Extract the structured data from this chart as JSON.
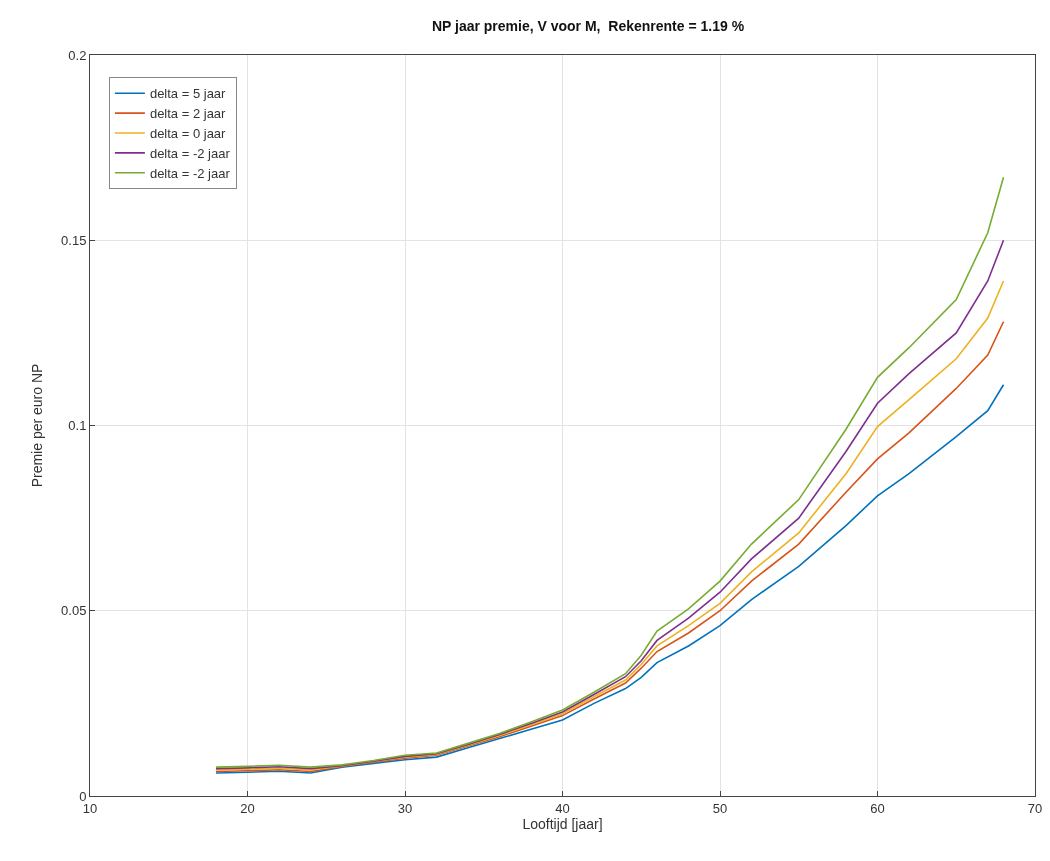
{
  "chart_data": {
    "type": "line",
    "title": "NP jaar premie, V voor M,  Rekenrente = 1.19 %",
    "xlabel": "Looftijd [jaar]",
    "ylabel": "Premie per euro NP",
    "x": [
      18,
      20,
      22,
      24,
      26,
      28,
      30,
      32,
      34,
      36,
      38,
      40,
      42,
      44,
      45,
      46,
      48,
      50,
      52,
      55,
      58,
      60,
      62,
      65,
      67,
      68
    ],
    "series": [
      {
        "name": "delta = 5 jaar",
        "color": "#0072bd",
        "values": [
          0.0062,
          0.0064,
          0.0067,
          0.0062,
          0.0078,
          0.0088,
          0.0098,
          0.0105,
          0.013,
          0.0155,
          0.018,
          0.0205,
          0.025,
          0.029,
          0.032,
          0.036,
          0.0405,
          0.046,
          0.053,
          0.062,
          0.073,
          0.081,
          0.087,
          0.097,
          0.104,
          0.111
        ]
      },
      {
        "name": "delta = 2 jaar",
        "color": "#d95319",
        "values": [
          0.0066,
          0.0068,
          0.0071,
          0.0066,
          0.008,
          0.0091,
          0.0102,
          0.011,
          0.0135,
          0.016,
          0.0188,
          0.0217,
          0.0262,
          0.0305,
          0.0345,
          0.039,
          0.044,
          0.05,
          0.058,
          0.068,
          0.082,
          0.091,
          0.098,
          0.11,
          0.119,
          0.128
        ]
      },
      {
        "name": "delta = 0 jaar",
        "color": "#edb120",
        "values": [
          0.007,
          0.0072,
          0.0075,
          0.007,
          0.0081,
          0.0093,
          0.0105,
          0.0112,
          0.0137,
          0.0163,
          0.0192,
          0.0222,
          0.0268,
          0.0313,
          0.0355,
          0.0405,
          0.046,
          0.052,
          0.0605,
          0.071,
          0.087,
          0.0997,
          0.107,
          0.118,
          0.129,
          0.139
        ]
      },
      {
        "name": "delta = -2 jaar",
        "color": "#7e2f8e",
        "values": [
          0.0074,
          0.0076,
          0.0079,
          0.0074,
          0.0082,
          0.0094,
          0.0107,
          0.0114,
          0.0139,
          0.0166,
          0.0196,
          0.0227,
          0.0274,
          0.0322,
          0.0365,
          0.042,
          0.048,
          0.055,
          0.064,
          0.075,
          0.093,
          0.106,
          0.114,
          0.125,
          0.139,
          0.15
        ]
      },
      {
        "name": "delta = -2 jaar",
        "color": "#77ac30",
        "values": [
          0.0078,
          0.008,
          0.0083,
          0.0078,
          0.0084,
          0.0096,
          0.011,
          0.0116,
          0.0142,
          0.0169,
          0.02,
          0.0232,
          0.028,
          0.033,
          0.038,
          0.0445,
          0.0505,
          0.058,
          0.068,
          0.08,
          0.099,
          0.113,
          0.121,
          0.134,
          0.152,
          0.167
        ]
      }
    ],
    "xlim": [
      10,
      70
    ],
    "xticks": [
      10,
      20,
      30,
      40,
      50,
      60,
      70
    ],
    "ylim": [
      0,
      0.2
    ],
    "yticks": [
      0,
      0.05,
      0.1,
      0.15,
      0.2
    ],
    "grid": true,
    "legend": "top left",
    "marker": "none",
    "line_style": "solid"
  }
}
